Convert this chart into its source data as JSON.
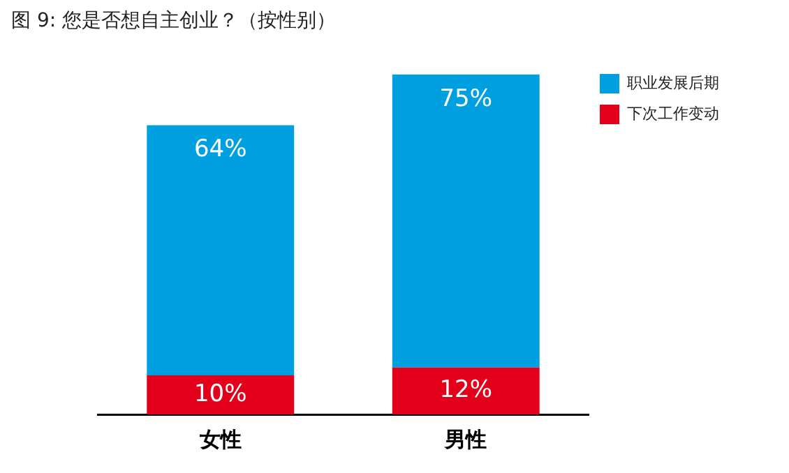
{
  "chart_data": {
    "type": "bar",
    "title": "图 9: 您是否想自主创业？（按性别）",
    "categories": [
      "女性",
      "男性"
    ],
    "stacked": true,
    "legend": "top right",
    "grid": false,
    "series": [
      {
        "name": "下次工作变动",
        "color": "#e2001a",
        "values": [
          10,
          12
        ],
        "value_labels": [
          "10%",
          "12%"
        ]
      },
      {
        "name": "职业发展后期",
        "color": "#00a0e0",
        "values": [
          64,
          75
        ],
        "value_labels": [
          "64%",
          "75%"
        ]
      }
    ]
  }
}
